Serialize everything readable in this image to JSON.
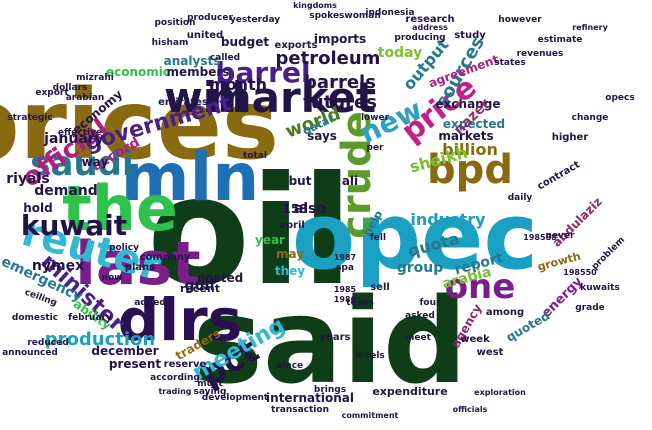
{
  "words": [
    {
      "text": "oil",
      "color": "#0f3d17"
    },
    {
      "text": "said",
      "color": "#0f3d17"
    },
    {
      "text": "prices",
      "color": "#8a6a10"
    },
    {
      "text": "opec",
      "color": "#1aa0c2"
    },
    {
      "text": "mln",
      "color": "#1f6fb4"
    },
    {
      "text": "the",
      "color": "#2fc24a"
    },
    {
      "text": "last",
      "color": "#7a1f8a"
    },
    {
      "text": "dlrs",
      "color": "#2a0f52"
    },
    {
      "text": "will",
      "color": "#231447"
    },
    {
      "text": "market",
      "color": "#231447"
    },
    {
      "text": "crude",
      "color": "#5a9b2a"
    },
    {
      "text": "bpd",
      "color": "#8a6a10"
    },
    {
      "text": "reuter",
      "color": "#32b8d2"
    },
    {
      "text": "one",
      "color": "#7a1f8a"
    },
    {
      "text": "saudi",
      "color": "#25788e"
    },
    {
      "text": "kuwait",
      "color": "#231447"
    },
    {
      "text": "pct",
      "color": "#231447"
    },
    {
      "text": "barrel",
      "color": "#4a1f8a"
    },
    {
      "text": "price",
      "color": "#c0208c"
    },
    {
      "text": "official",
      "color": "#b01f7c"
    },
    {
      "text": "new",
      "color": "#2fa0c2"
    },
    {
      "text": "government",
      "color": "#4a1f8a"
    },
    {
      "text": "barrels",
      "color": "#231447"
    },
    {
      "text": "meeting",
      "color": "#32b8d2"
    },
    {
      "text": "minister",
      "color": "#4a1f8a"
    },
    {
      "text": "production",
      "color": "#1aa0c2"
    },
    {
      "text": "petroleum",
      "color": "#231447"
    },
    {
      "text": "futures",
      "color": "#231447"
    },
    {
      "text": "month",
      "color": "#231447"
    },
    {
      "text": "world",
      "color": "#4a7a1a"
    },
    {
      "text": "sources",
      "color": "#25788e"
    },
    {
      "text": "output",
      "color": "#25788e"
    },
    {
      "text": "industry",
      "color": "#1aa0c2"
    },
    {
      "text": "billion",
      "color": "#8a6a10"
    },
    {
      "text": "sheikh",
      "color": "#7ac030"
    },
    {
      "text": "quota",
      "color": "#25788e"
    },
    {
      "text": "group",
      "color": "#25788e"
    },
    {
      "text": "report",
      "color": "#25788e"
    },
    {
      "text": "also",
      "color": "#231447"
    },
    {
      "text": "may",
      "color": "#8a6a10"
    },
    {
      "text": "they",
      "color": "#32b8d2"
    },
    {
      "text": "year",
      "color": "#2fc24a"
    },
    {
      "text": "posted",
      "color": "#231447"
    },
    {
      "text": "gulf",
      "color": "#231447"
    },
    {
      "text": "emergency",
      "color": "#25788e"
    },
    {
      "text": "nymex",
      "color": "#231447"
    },
    {
      "text": "demand",
      "color": "#231447"
    },
    {
      "text": "riyals",
      "color": "#231447"
    },
    {
      "text": "january",
      "color": "#231447"
    },
    {
      "text": "accord",
      "color": "#b01f7c"
    },
    {
      "text": "economic",
      "color": "#2fc24a"
    },
    {
      "text": "economy",
      "color": "#231447"
    },
    {
      "text": "members",
      "color": "#231447"
    },
    {
      "text": "analysts",
      "color": "#25788e"
    },
    {
      "text": "imports",
      "color": "#231447"
    },
    {
      "text": "today",
      "color": "#7ac030"
    },
    {
      "text": "agreement",
      "color": "#b01f7c"
    },
    {
      "text": "exchange",
      "color": "#231447"
    },
    {
      "text": "markets",
      "color": "#231447"
    },
    {
      "text": "expected",
      "color": "#25788e"
    },
    {
      "text": "energy",
      "color": "#7a1f8a"
    },
    {
      "text": "international",
      "color": "#231447"
    },
    {
      "text": "december",
      "color": "#231447"
    },
    {
      "text": "present",
      "color": "#231447"
    },
    {
      "text": "traders",
      "color": "#8a6a10"
    },
    {
      "text": "recent",
      "color": "#231447"
    },
    {
      "text": "ability",
      "color": "#2fc24a"
    },
    {
      "text": "arabia",
      "color": "#7ac030"
    },
    {
      "text": "abdulaziz",
      "color": "#8a2a6a"
    },
    {
      "text": "agency",
      "color": "#8a2a6a"
    },
    {
      "text": "quoted",
      "color": "#25788e"
    },
    {
      "text": "growth",
      "color": "#8a6a10"
    },
    {
      "text": "expenditure",
      "color": "#231447"
    },
    {
      "text": "help",
      "color": "#25788e"
    },
    {
      "text": "texas",
      "color": "#231447"
    },
    {
      "text": "week",
      "color": "#231447"
    },
    {
      "text": "west",
      "color": "#231447"
    },
    {
      "text": "since",
      "color": "#231447"
    },
    {
      "text": "levels",
      "color": "#231447"
    },
    {
      "text": "brings",
      "color": "#231447"
    },
    {
      "text": "says",
      "color": "#231447"
    },
    {
      "text": "qatar",
      "color": "#25788e"
    },
    {
      "text": "plans",
      "color": "#231447"
    },
    {
      "text": "company",
      "color": "#231447"
    },
    {
      "text": "but",
      "color": "#231447"
    },
    {
      "text": "ali",
      "color": "#231447"
    },
    {
      "text": "sell",
      "color": "#231447"
    },
    {
      "text": "among",
      "color": "#231447"
    },
    {
      "text": "asked",
      "color": "#231447"
    },
    {
      "text": "years",
      "color": "#231447"
    },
    {
      "text": "april",
      "color": "#231447"
    },
    {
      "text": "nazer",
      "color": "#8a2a6a"
    },
    {
      "text": "states",
      "color": "#231447"
    },
    {
      "text": "emirates",
      "color": "#231447"
    },
    {
      "text": "budget",
      "color": "#231447"
    },
    {
      "text": "united",
      "color": "#231447"
    },
    {
      "text": "exports",
      "color": "#231447"
    },
    {
      "text": "research",
      "color": "#231447"
    },
    {
      "text": "study",
      "color": "#231447"
    },
    {
      "text": "producing",
      "color": "#231447"
    },
    {
      "text": "revenues",
      "color": "#231447"
    },
    {
      "text": "reserve",
      "color": "#231447"
    },
    {
      "text": "transaction",
      "color": "#231447"
    },
    {
      "text": "development",
      "color": "#231447"
    },
    {
      "text": "according",
      "color": "#231447"
    },
    {
      "text": "february",
      "color": "#231447"
    },
    {
      "text": "reduced",
      "color": "#231447"
    },
    {
      "text": "hold",
      "color": "#231447"
    },
    {
      "text": "way",
      "color": "#231447"
    },
    {
      "text": "added",
      "color": "#231447"
    },
    {
      "text": "now",
      "color": "#231447"
    },
    {
      "text": "policy",
      "color": "#231447"
    },
    {
      "text": "effective",
      "color": "#231447"
    },
    {
      "text": "strategic",
      "color": "#231447"
    },
    {
      "text": "domestic",
      "color": "#231447"
    },
    {
      "text": "announced",
      "color": "#231447"
    },
    {
      "text": "contract",
      "color": "#231447"
    },
    {
      "text": "higher",
      "color": "#231447"
    },
    {
      "text": "daily",
      "color": "#231447"
    },
    {
      "text": "lower",
      "color": "#231447"
    },
    {
      "text": "total",
      "color": "#231447"
    },
    {
      "text": "spa",
      "color": "#231447"
    },
    {
      "text": "fell",
      "color": "#231447"
    },
    {
      "text": "meet",
      "color": "#231447"
    },
    {
      "text": "commitment",
      "color": "#231447"
    },
    {
      "text": "officials",
      "color": "#231447"
    },
    {
      "text": "exploration",
      "color": "#231447"
    },
    {
      "text": "problem",
      "color": "#231447"
    },
    {
      "text": "kuwaits",
      "color": "#231447"
    },
    {
      "text": "opecs",
      "color": "#231447"
    },
    {
      "text": "never",
      "color": "#231447"
    },
    {
      "text": "change",
      "color": "#231447"
    },
    {
      "text": "however",
      "color": "#231447"
    },
    {
      "text": "yesterday",
      "color": "#231447"
    },
    {
      "text": "spokeswoman",
      "color": "#231447"
    },
    {
      "text": "indonesia",
      "color": "#231447"
    },
    {
      "text": "kingdoms",
      "color": "#231447"
    },
    {
      "text": "estimate",
      "color": "#231447"
    },
    {
      "text": "producer",
      "color": "#231447"
    },
    {
      "text": "position",
      "color": "#231447"
    },
    {
      "text": "hisham",
      "color": "#231447"
    },
    {
      "text": "mizrahi",
      "color": "#231447"
    },
    {
      "text": "dollars",
      "color": "#231447"
    },
    {
      "text": "arabian",
      "color": "#231447"
    },
    {
      "text": "called",
      "color": "#231447"
    },
    {
      "text": "must",
      "color": "#231447"
    },
    {
      "text": "saying",
      "color": "#231447"
    },
    {
      "text": "trading",
      "color": "#231447"
    },
    {
      "text": "grade",
      "color": "#231447"
    },
    {
      "text": "158",
      "color": "#231447"
    },
    {
      "text": "1985",
      "color": "#231447"
    },
    {
      "text": "1986",
      "color": "#231447"
    },
    {
      "text": "1987",
      "color": "#231447"
    },
    {
      "text": "198588",
      "color": "#231447"
    },
    {
      "text": "198550",
      "color": "#231447"
    },
    {
      "text": "address",
      "color": "#231447"
    },
    {
      "text": "refinery",
      "color": "#231447"
    },
    {
      "text": "four",
      "color": "#231447"
    },
    {
      "text": "per",
      "color": "#231447"
    },
    {
      "text": "ceiling",
      "color": "#231447"
    },
    {
      "text": "export",
      "color": "#231447"
    }
  ]
}
